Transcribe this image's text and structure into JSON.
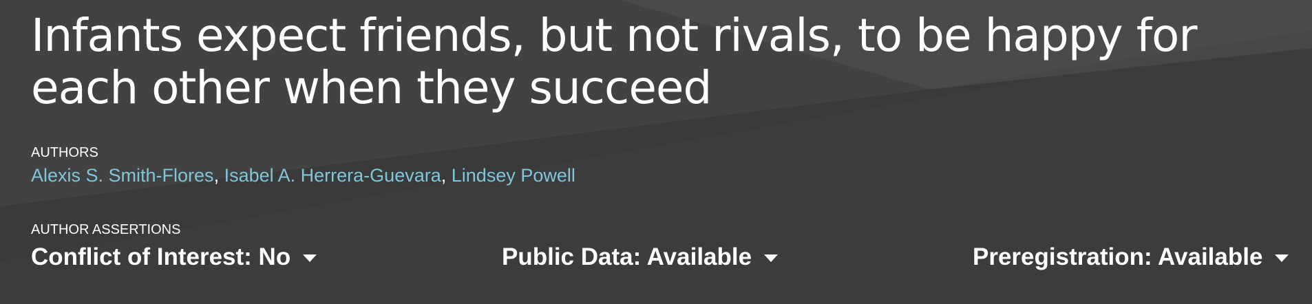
{
  "colors": {
    "background": "#3a3a3a",
    "author_link": "#7fc6d8",
    "text": "#ffffff"
  },
  "article": {
    "title": "Infants expect friends, but not rivals, to be happy for each other when they succeed"
  },
  "authors": {
    "label": "AUTHORS",
    "items": [
      {
        "name": "Alexis S. Smith-Flores"
      },
      {
        "name": "Isabel A. Herrera-Guevara"
      },
      {
        "name": "Lindsey Powell"
      }
    ],
    "separator": ","
  },
  "assertions": {
    "label": "AUTHOR ASSERTIONS",
    "items": [
      {
        "label": "Conflict of Interest: No",
        "icon": "caret-down-icon"
      },
      {
        "label": "Public Data: Available",
        "icon": "caret-down-icon"
      },
      {
        "label": "Preregistration: Available",
        "icon": "caret-down-icon"
      }
    ]
  }
}
